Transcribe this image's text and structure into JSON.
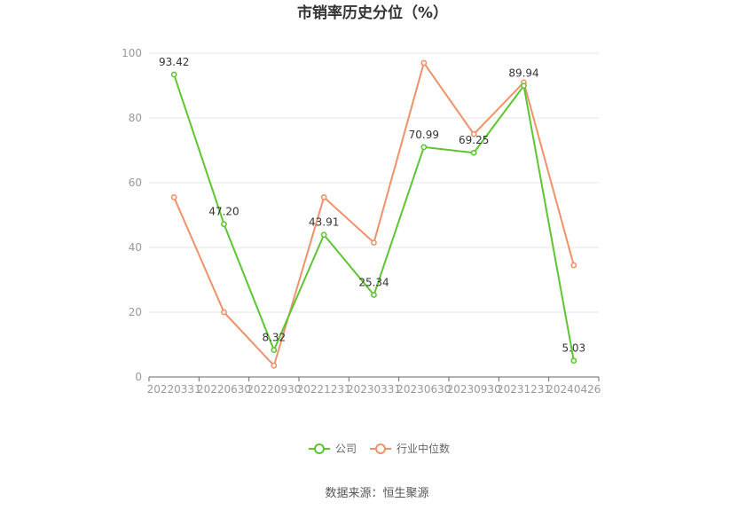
{
  "chart_data": {
    "type": "line",
    "title": "市销率历史分位（%）",
    "x": [
      "20220331",
      "20220630",
      "20220930",
      "20221231",
      "20230331",
      "20230630",
      "20230930",
      "20231231",
      "20240426"
    ],
    "ylim": [
      0,
      100
    ],
    "yticks": [
      0,
      20,
      40,
      60,
      80,
      100
    ],
    "grid": true,
    "legend_position": "bottom",
    "series": [
      {
        "name": "公司",
        "color": "#5cc531",
        "values": [
          93.42,
          47.2,
          8.32,
          43.91,
          25.34,
          70.99,
          69.25,
          89.94,
          5.03
        ],
        "labels": [
          "93.42",
          "47.20",
          "8.32",
          "43.91",
          "25.34",
          "70.99",
          "69.25",
          "89.94",
          "5.03"
        ]
      },
      {
        "name": "行业中位数",
        "color": "#f0916a",
        "values": [
          55.5,
          20.0,
          3.5,
          55.5,
          41.5,
          97.0,
          75.0,
          91.0,
          34.5
        ]
      }
    ]
  },
  "source_text": "数据来源：恒生聚源"
}
